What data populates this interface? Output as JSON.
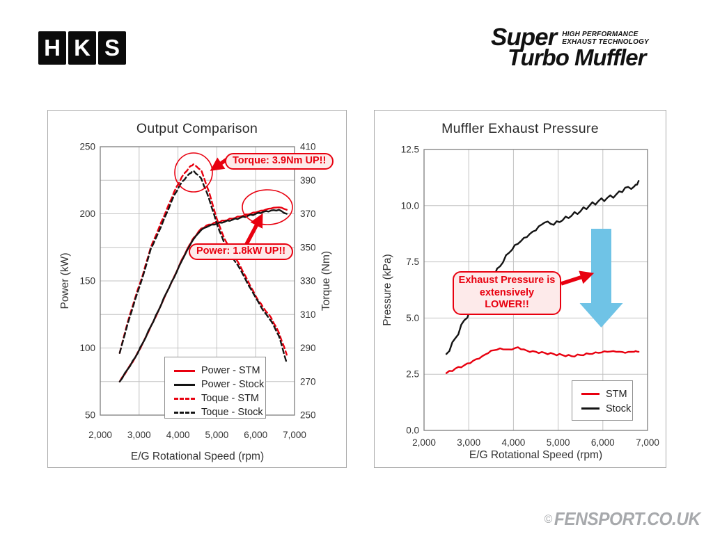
{
  "branding": {
    "hks_letters": [
      "H",
      "K",
      "S"
    ],
    "product_line1": "Super",
    "product_tagline_line1": "HIGH PERFORMANCE",
    "product_tagline_line2": "EXHAUST TECHNOLOGY",
    "product_line2": "Turbo Muffler"
  },
  "watermark": {
    "copyright": "©",
    "text": "FENSPORT.CO.UK"
  },
  "colors": {
    "accent_red": "#e8000f",
    "curve_black": "#141414",
    "callout_background": "#fdeaea",
    "blue_arrow": "#6fc3e6",
    "grid": "#c2c2c2"
  },
  "chart_data": [
    {
      "type": "line",
      "title": "Output Comparison",
      "xlabel": "E/G Rotational Speed (rpm)",
      "xlim": [
        2000,
        7000
      ],
      "x_ticks": [
        "2,000",
        "3,000",
        "4,000",
        "5,000",
        "6,000",
        "7,000"
      ],
      "y_left": {
        "label": "Power (kW)",
        "lim": [
          50,
          250
        ],
        "grid_step": 25,
        "ticks": [
          "250",
          "200",
          "150",
          "100",
          "50"
        ]
      },
      "y_right": {
        "label": "Torque (Nm)",
        "lim": [
          250,
          410
        ],
        "ticks": [
          "410",
          "390",
          "370",
          "350",
          "330",
          "310",
          "290",
          "270",
          "250"
        ]
      },
      "x": [
        2500,
        2700,
        2900,
        3100,
        3300,
        3500,
        3700,
        3900,
        4100,
        4300,
        4400,
        4600,
        4800,
        5000,
        5200,
        5400,
        5600,
        5800,
        6000,
        6200,
        6400,
        6600,
        6800
      ],
      "series": [
        {
          "name": "Power - STM",
          "axis": "left",
          "color": "#e8000f",
          "dash": false,
          "wiggle": 0.5,
          "values": [
            75,
            84,
            93,
            104,
            116,
            128,
            141,
            153,
            166,
            177,
            182,
            189,
            192,
            193.5,
            195,
            196.5,
            198,
            199.5,
            201,
            202.5,
            204,
            204.8,
            203
          ]
        },
        {
          "name": "Power - Stock",
          "axis": "left",
          "color": "#141414",
          "dash": false,
          "wiggle": 0.5,
          "values": [
            75,
            84,
            93,
            104,
            116,
            128,
            141,
            152.5,
            165,
            176,
            181,
            188,
            191,
            192.5,
            194,
            195.5,
            197,
            198.5,
            200,
            201.5,
            202.5,
            203,
            200
          ]
        },
        {
          "name": "Toque - STM",
          "axis": "right",
          "color": "#e8000f",
          "dash": true,
          "wiggle": 0.3,
          "values": [
            287,
            305,
            320,
            334,
            350,
            361,
            372,
            383,
            392,
            398,
            399.6,
            396,
            383,
            367,
            355,
            347,
            339,
            330,
            321,
            314,
            308,
            299,
            286
          ]
        },
        {
          "name": "Toque - Stock",
          "axis": "right",
          "color": "#141414",
          "dash": true,
          "wiggle": 0.3,
          "values": [
            287,
            304,
            319,
            333,
            349,
            359,
            370,
            381,
            389,
            394,
            395.7,
            391,
            379,
            364,
            352,
            344,
            337,
            328,
            320,
            312,
            306,
            297,
            281
          ]
        }
      ],
      "annotations": [
        {
          "text": "Torque: 3.9Nm UP!!"
        },
        {
          "text": "Power: 1.8kW UP!!"
        }
      ],
      "legend_position": "bottom-center"
    },
    {
      "type": "line",
      "title": "Muffler Exhaust Pressure",
      "xlabel": "E/G Rotational Speed (rpm)",
      "xlim": [
        2000,
        7000
      ],
      "x_ticks": [
        "2,000",
        "3,000",
        "4,000",
        "5,000",
        "6,000",
        "7,000"
      ],
      "y_left": {
        "label": "Pressure (kPa)",
        "lim": [
          0,
          12.5
        ],
        "grid_step": 2.5,
        "ticks": [
          "12.5",
          "10.0",
          "7.5",
          "5.0",
          "2.5",
          "0.0"
        ]
      },
      "x": [
        2500,
        2700,
        2900,
        3100,
        3300,
        3500,
        3700,
        3900,
        4100,
        4300,
        4500,
        4700,
        4900,
        5100,
        5300,
        5500,
        5700,
        5900,
        6100,
        6300,
        6500,
        6700,
        6800
      ],
      "series": [
        {
          "name": "STM",
          "axis": "left",
          "color": "#e8000f",
          "dash": false,
          "wiggle": 0.045,
          "values": [
            2.55,
            2.75,
            2.9,
            3.1,
            3.3,
            3.55,
            3.65,
            3.6,
            3.7,
            3.55,
            3.5,
            3.45,
            3.4,
            3.35,
            3.3,
            3.35,
            3.4,
            3.45,
            3.5,
            3.5,
            3.45,
            3.5,
            3.5
          ]
        },
        {
          "name": "Stock",
          "axis": "left",
          "color": "#141414",
          "dash": false,
          "wiggle": 0.1,
          "values": [
            3.4,
            4.1,
            4.9,
            5.5,
            6.1,
            6.7,
            7.3,
            7.9,
            8.3,
            8.6,
            8.9,
            9.25,
            9.15,
            9.35,
            9.55,
            9.75,
            10.0,
            10.2,
            10.35,
            10.5,
            10.8,
            10.85,
            11.1
          ]
        }
      ],
      "annotations": [
        {
          "text": "Exhaust Pressure is extensively LOWER!!"
        }
      ],
      "legend_position": "bottom-right"
    }
  ]
}
